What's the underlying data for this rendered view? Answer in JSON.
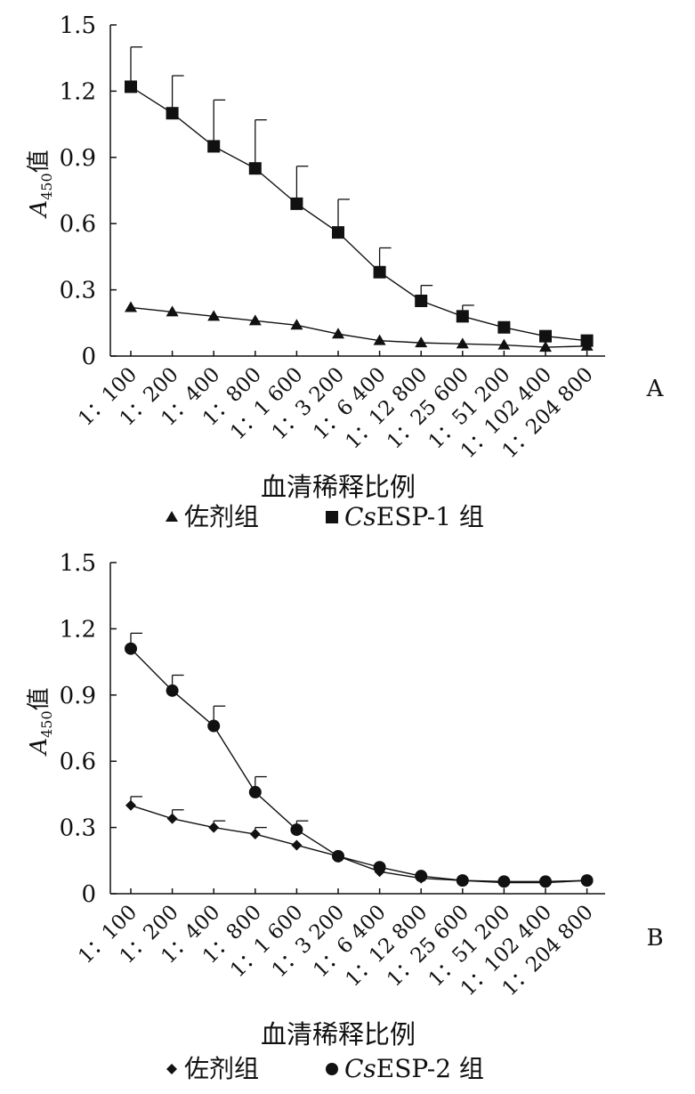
{
  "chart_data": [
    {
      "type": "line",
      "panel_label": "A",
      "ylabel_main": "A",
      "ylabel_sub": "450",
      "ylabel_suffix": "值",
      "xlabel": "血清稀释比例",
      "ylim": [
        0,
        1.5
      ],
      "yticks": [
        "1.5",
        "1.2",
        "0.9",
        "0.6",
        "0.3",
        "0"
      ],
      "yticks_values": [
        1.5,
        1.2,
        0.9,
        0.6,
        0.3,
        0
      ],
      "categories": [
        "1：100",
        "1：200",
        "1：400",
        "1：800",
        "1：1 600",
        "1：3 200",
        "1：6 400",
        "1：12 800",
        "1：25 600",
        "1：51 200",
        "1：102 400",
        "1：204 800"
      ],
      "legend": [
        {
          "marker": "triangle",
          "text": "佐剂组",
          "italic": ""
        },
        {
          "marker": "square",
          "text": "ESP-1 组",
          "italic": "Cs"
        }
      ],
      "series": [
        {
          "name": "佐剂组",
          "marker": "triangle",
          "values": [
            0.22,
            0.2,
            0.18,
            0.16,
            0.14,
            0.1,
            0.07,
            0.06,
            0.055,
            0.05,
            0.04,
            0.045
          ],
          "errors": []
        },
        {
          "name": "CsESP-1 组",
          "marker": "square",
          "values": [
            1.22,
            1.1,
            0.95,
            0.85,
            0.69,
            0.56,
            0.38,
            0.25,
            0.18,
            0.13,
            0.09,
            0.07
          ],
          "errors": [
            0.18,
            0.17,
            0.21,
            0.22,
            0.17,
            0.15,
            0.11,
            0.07,
            0.05,
            0,
            0,
            0
          ]
        }
      ],
      "grid": false
    },
    {
      "type": "line",
      "panel_label": "B",
      "ylabel_main": "A",
      "ylabel_sub": "450",
      "ylabel_suffix": "值",
      "xlabel": "血清稀释比例",
      "ylim": [
        0,
        1.5
      ],
      "yticks": [
        "1.5",
        "1.2",
        "0.9",
        "0.6",
        "0.3",
        "0"
      ],
      "yticks_values": [
        1.5,
        1.2,
        0.9,
        0.6,
        0.3,
        0
      ],
      "categories": [
        "1：100",
        "1：200",
        "1：400",
        "1：800",
        "1：1 600",
        "1：3 200",
        "1：6 400",
        "1：12 800",
        "1：25 600",
        "1：51 200",
        "1：102 400",
        "1：204 800"
      ],
      "legend": [
        {
          "marker": "diamond",
          "text": "佐剂组",
          "italic": ""
        },
        {
          "marker": "circle",
          "text": "ESP-2 组",
          "italic": "Cs"
        }
      ],
      "series": [
        {
          "name": "佐剂组",
          "marker": "diamond",
          "values": [
            0.4,
            0.34,
            0.3,
            0.27,
            0.22,
            0.17,
            0.1,
            0.07,
            0.06,
            0.05,
            0.05,
            0.06
          ],
          "errors": [
            0.04,
            0.04,
            0.03,
            0.03,
            0,
            0,
            0,
            0,
            0,
            0,
            0,
            0
          ]
        },
        {
          "name": "CsESP-2 组",
          "marker": "circle",
          "values": [
            1.11,
            0.92,
            0.76,
            0.46,
            0.29,
            0.17,
            0.12,
            0.08,
            0.06,
            0.055,
            0.055,
            0.06
          ],
          "errors": [
            0.07,
            0.07,
            0.09,
            0.07,
            0.04,
            0,
            0,
            0,
            0,
            0,
            0,
            0
          ]
        }
      ],
      "grid": false
    }
  ]
}
